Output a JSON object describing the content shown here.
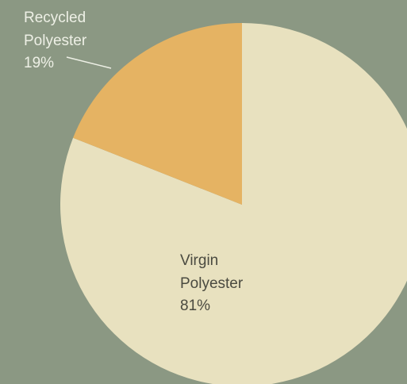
{
  "chart_data": {
    "type": "pie",
    "slices": [
      {
        "name": "Virgin Polyester",
        "label_lines": [
          "Virgin",
          "Polyester"
        ],
        "value": 81,
        "value_label": "81%",
        "color": "#e8e1bf"
      },
      {
        "name": "Recycled Polyester",
        "label_lines": [
          "Recycled",
          "Polyester"
        ],
        "value": 19,
        "value_label": "19%",
        "color": "#e5b363"
      }
    ],
    "background_color": "#8b9883",
    "start": "12 o'clock",
    "direction": "clockwise"
  }
}
